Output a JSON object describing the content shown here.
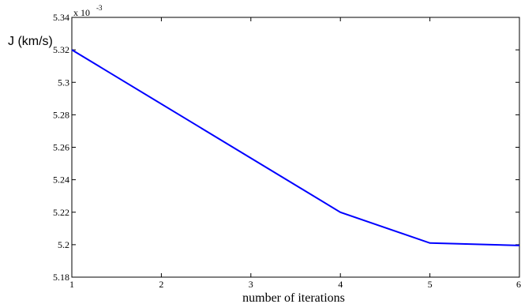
{
  "chart_data": {
    "type": "line",
    "xlabel": "number of iterations",
    "ylabel": "J (km/s)",
    "y_multiplier": {
      "base": "x 10",
      "exponent": "-3"
    },
    "xlim": [
      1,
      6
    ],
    "ylim": [
      5.18,
      5.34
    ],
    "x_ticks": [
      "1",
      "2",
      "3",
      "4",
      "5",
      "6"
    ],
    "y_ticks": [
      "5.18",
      "5.2",
      "5.22",
      "5.24",
      "5.26",
      "5.28",
      "5.3",
      "5.32",
      "5.34"
    ],
    "grid": false,
    "series": [
      {
        "x": [
          1,
          4,
          5,
          6
        ],
        "values": [
          5.32,
          5.22,
          5.201,
          5.1995
        ],
        "color": "#0000ff"
      }
    ]
  }
}
